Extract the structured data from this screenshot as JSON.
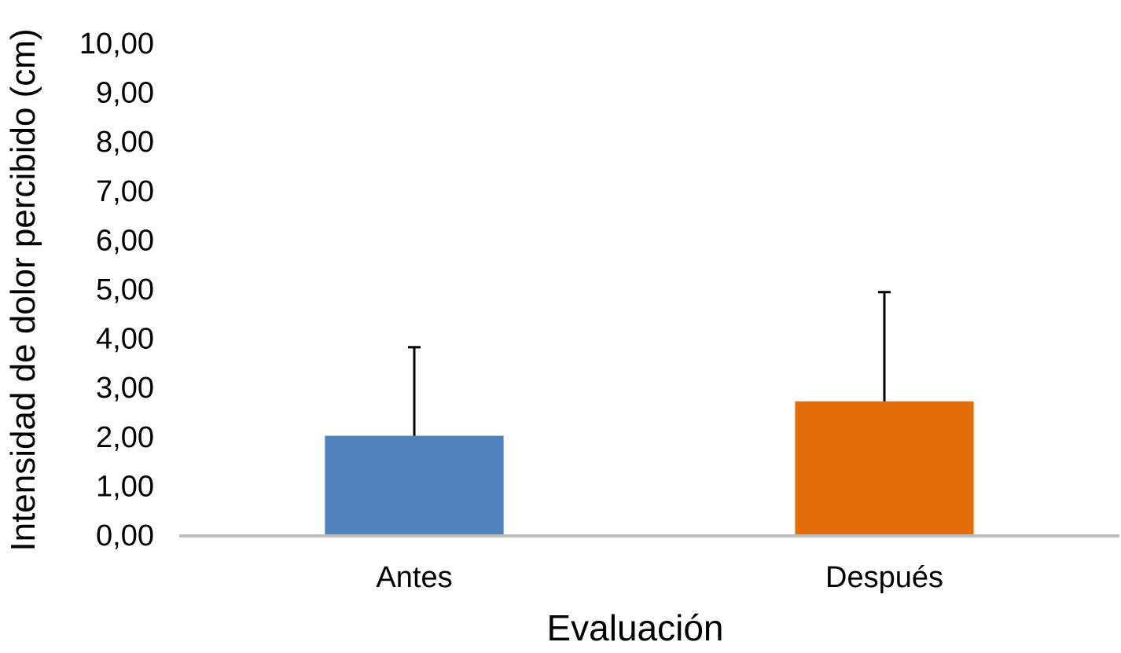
{
  "chart_data": {
    "type": "bar",
    "title": "",
    "xlabel": "Evaluación",
    "ylabel": "Intensidad de dolor percibido (cm)",
    "categories": [
      "Antes",
      "Después"
    ],
    "values": [
      2.02,
      2.72
    ],
    "error_plus": [
      1.8,
      2.22
    ],
    "bar_colors": [
      "#4F81BD",
      "#E46C0A"
    ],
    "ylim": [
      0,
      10
    ],
    "yticks": [
      "0,00",
      "1,00",
      "2,00",
      "3,00",
      "4,00",
      "5,00",
      "6,00",
      "7,00",
      "8,00",
      "9,00",
      "10,00"
    ],
    "grid": false,
    "legend": "none",
    "axis_color": "#BFBFBF",
    "error_bar_color": "#000000"
  }
}
